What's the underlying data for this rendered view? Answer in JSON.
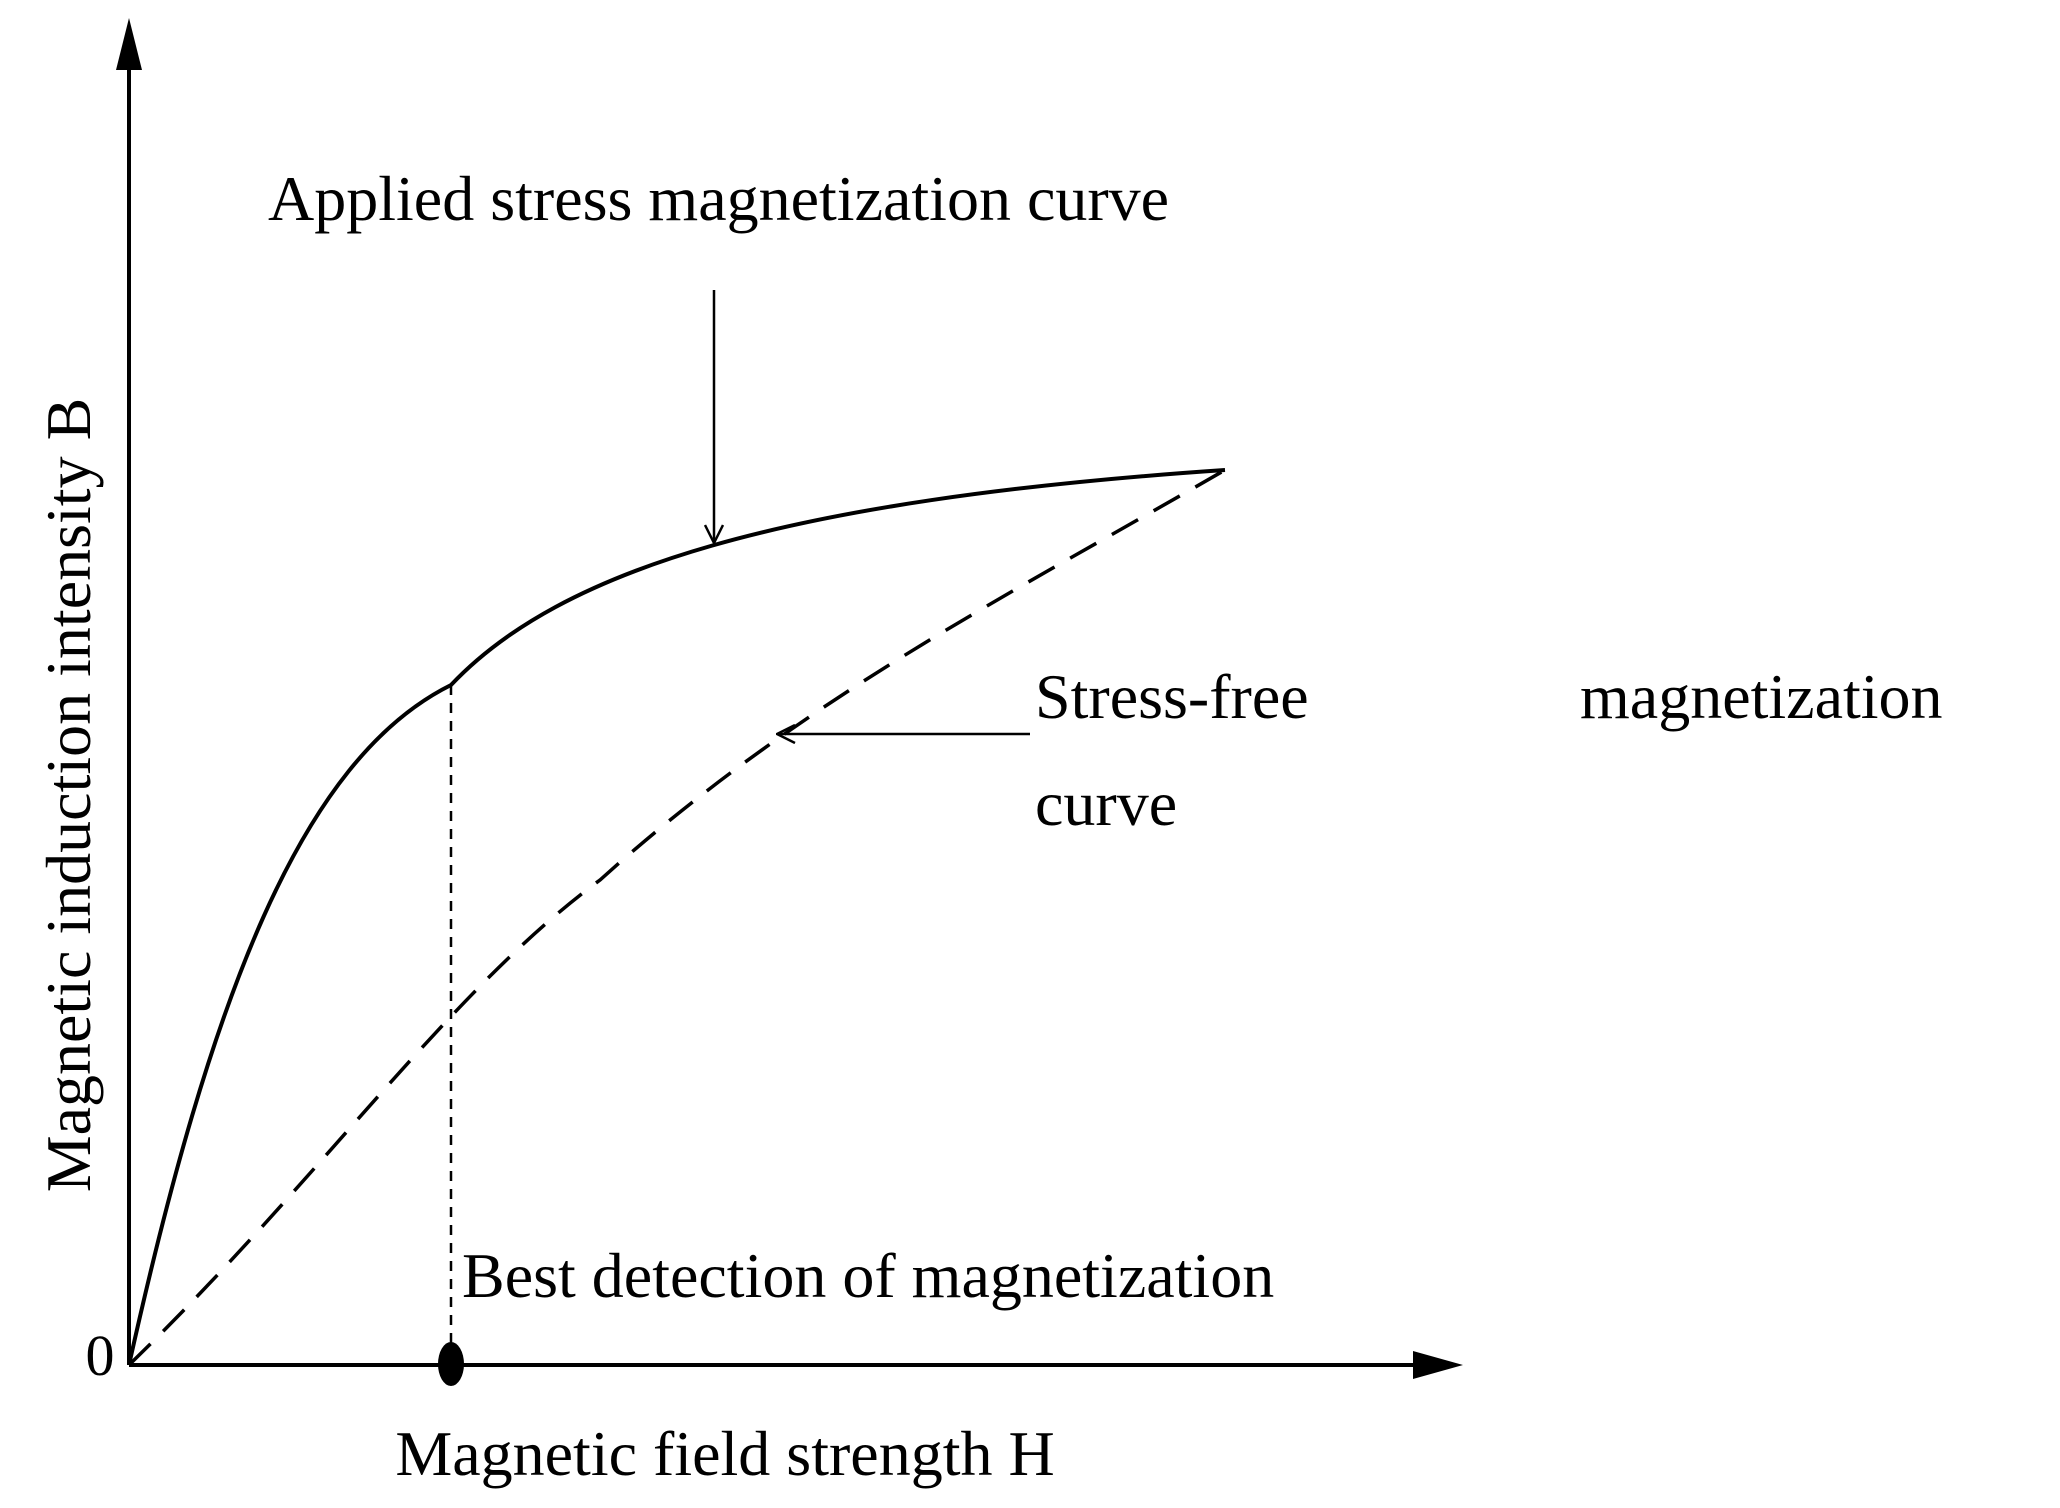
{
  "diagram": {
    "origin_label": "0",
    "y_axis_label": "Magnetic induction intensity B",
    "x_axis_label": "Magnetic field strength H",
    "applied_stress_label": "Applied stress magnetization curve",
    "stress_free_label_line1_a": "Stress-free",
    "stress_free_label_line1_b": "magnetization",
    "stress_free_label_line2": "curve",
    "best_detection_label": "Best detection of magnetization",
    "colors": {
      "ink": "#000000",
      "background": "#ffffff"
    }
  }
}
